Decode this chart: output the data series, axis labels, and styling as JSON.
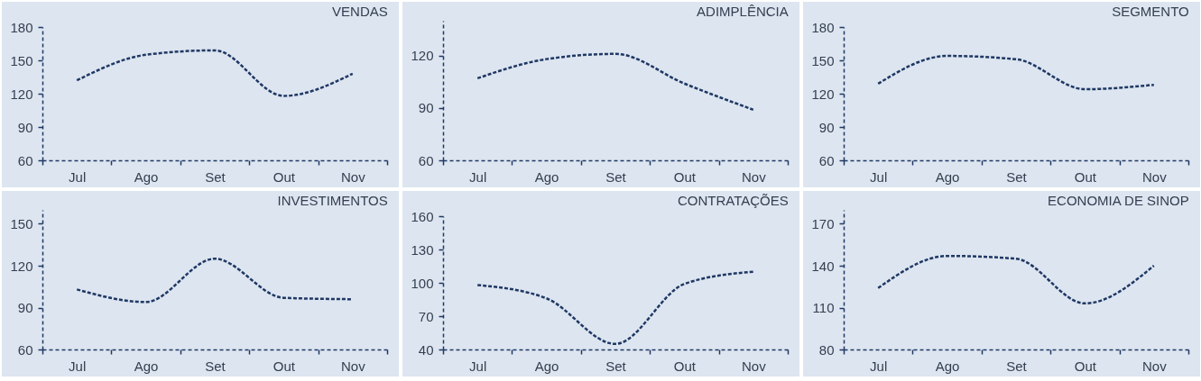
{
  "chart_data": [
    {
      "type": "line",
      "title": "VENDAS",
      "categories": [
        "Jul",
        "Ago",
        "Set",
        "Out",
        "Nov"
      ],
      "values": [
        132,
        155,
        159,
        118,
        138
      ],
      "color": "#1f3864",
      "line_style": "dashed",
      "ylim": [
        60,
        180
      ],
      "yticks": [
        60,
        90,
        120,
        150,
        180
      ]
    },
    {
      "type": "line",
      "title": "ADIMPLÊNCIA",
      "categories": [
        "Jul",
        "Ago",
        "Set",
        "Out",
        "Nov"
      ],
      "values": [
        107,
        118,
        121,
        104,
        89
      ],
      "color": "#1f3864",
      "line_style": "dashed",
      "ylim": [
        60,
        140
      ],
      "yticks": [
        60,
        90,
        120
      ]
    },
    {
      "type": "line",
      "title": "SEGMENTO",
      "categories": [
        "Jul",
        "Ago",
        "Set",
        "Out",
        "Nov"
      ],
      "values": [
        129,
        154,
        151,
        124,
        128
      ],
      "color": "#1f3864",
      "line_style": "dashed",
      "ylim": [
        60,
        180
      ],
      "yticks": [
        60,
        90,
        120,
        150,
        180
      ]
    },
    {
      "type": "line",
      "title": "INVESTIMENTOS",
      "categories": [
        "Jul",
        "Ago",
        "Set",
        "Out",
        "Nov"
      ],
      "values": [
        103,
        94,
        125,
        97,
        96
      ],
      "color": "#1f3864",
      "line_style": "dashed",
      "ylim": [
        60,
        160
      ],
      "yticks": [
        60,
        90,
        120,
        150
      ]
    },
    {
      "type": "line",
      "title": "CONTRATAÇÕES",
      "categories": [
        "Jul",
        "Ago",
        "Set",
        "Out",
        "Nov"
      ],
      "values": [
        98,
        86,
        45,
        99,
        110
      ],
      "color": "#1f3864",
      "line_style": "dashed",
      "ylim": [
        40,
        160
      ],
      "yticks": [
        40,
        70,
        100,
        130,
        160
      ]
    },
    {
      "type": "line",
      "title": "ECONOMIA DE SINOP",
      "categories": [
        "Jul",
        "Ago",
        "Set",
        "Out",
        "Nov"
      ],
      "values": [
        124,
        147,
        145,
        113,
        140
      ],
      "color": "#1f3864",
      "line_style": "dashed",
      "ylim": [
        80,
        180
      ],
      "yticks": [
        80,
        110,
        140,
        170
      ]
    }
  ]
}
